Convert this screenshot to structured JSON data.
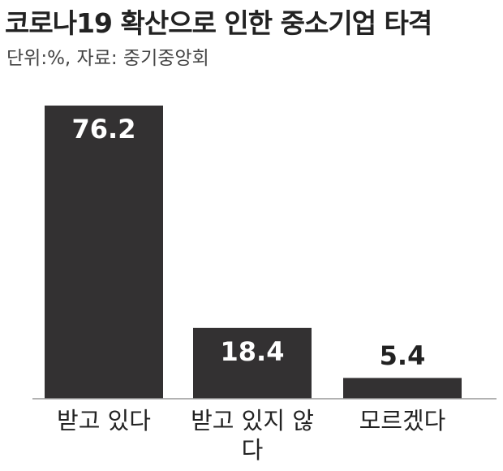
{
  "chart_data": {
    "type": "bar",
    "title": "코로나19 확산으로 인한 중소기업 타격",
    "subtitle": "단위:%, 자료: 중기중앙회",
    "categories": [
      "받고 있다",
      "받고 있지 않다",
      "모르겠다"
    ],
    "values": [
      76.2,
      18.4,
      5.4
    ],
    "color": "#333132"
  }
}
